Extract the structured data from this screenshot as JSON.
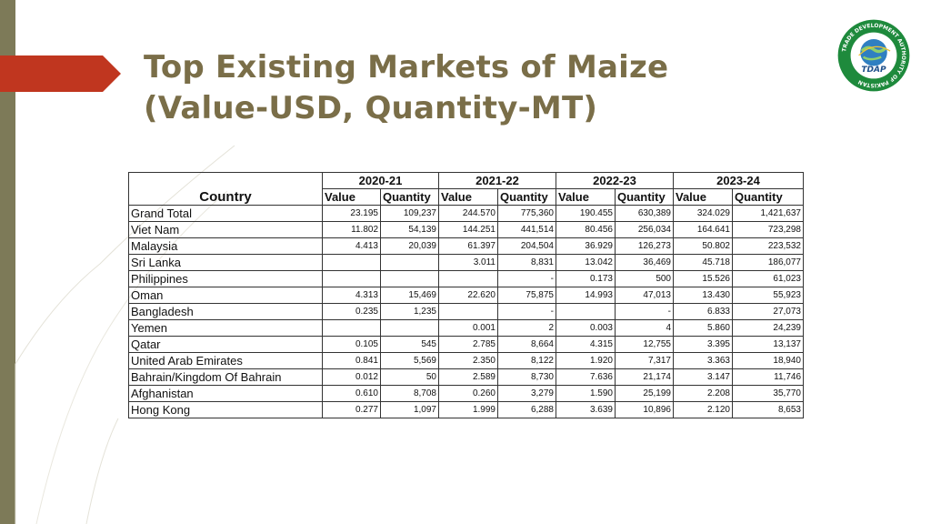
{
  "title": {
    "line1": "Top Existing Markets of Maize",
    "line2": "(Value-USD, Quantity-MT)"
  },
  "logo": {
    "ring_text": "TRADE DEVELOPMENT AUTHORITY OF PAKISTAN",
    "center_text": "TDAP"
  },
  "colors": {
    "title": "#7a6e48",
    "left_bar": "#7d7a58",
    "arrow": "#c0361f",
    "logo_green": "#1e8a3c"
  },
  "table": {
    "country_header": "Country",
    "years": [
      "2020-21",
      "2021-22",
      "2022-23",
      "2023-24"
    ],
    "sub_headers": [
      "Value",
      "Quantity"
    ],
    "rows": [
      {
        "country": "Grand Total",
        "cells": [
          "23.195",
          "109,237",
          "244.570",
          "775,360",
          "190.455",
          "630,389",
          "324.029",
          "1,421,637"
        ]
      },
      {
        "country": "Viet Nam",
        "cells": [
          "11.802",
          "54,139",
          "144.251",
          "441,514",
          "80.456",
          "256,034",
          "164.641",
          "723,298"
        ]
      },
      {
        "country": "Malaysia",
        "cells": [
          "4.413",
          "20,039",
          "61.397",
          "204,504",
          "36.929",
          "126,273",
          "50.802",
          "223,532"
        ]
      },
      {
        "country": "Sri Lanka",
        "cells": [
          "",
          "",
          "3.011",
          "8,831",
          "13.042",
          "36,469",
          "45.718",
          "186,077"
        ]
      },
      {
        "country": "Philippines",
        "cells": [
          "",
          "",
          "",
          "-",
          "0.173",
          "500",
          "15.526",
          "61,023"
        ]
      },
      {
        "country": "Oman",
        "cells": [
          "4.313",
          "15,469",
          "22.620",
          "75,875",
          "14.993",
          "47,013",
          "13.430",
          "55,923"
        ]
      },
      {
        "country": "Bangladesh",
        "cells": [
          "0.235",
          "1,235",
          "",
          "-",
          "",
          "-",
          "6.833",
          "27,073"
        ]
      },
      {
        "country": "Yemen",
        "cells": [
          "",
          "",
          "0.001",
          "2",
          "0.003",
          "4",
          "5.860",
          "24,239"
        ]
      },
      {
        "country": "Qatar",
        "cells": [
          "0.105",
          "545",
          "2.785",
          "8,664",
          "4.315",
          "12,755",
          "3.395",
          "13,137"
        ]
      },
      {
        "country": "United Arab Emirates",
        "cells": [
          "0.841",
          "5,569",
          "2.350",
          "8,122",
          "1.920",
          "7,317",
          "3.363",
          "18,940"
        ]
      },
      {
        "country": "Bahrain/Kingdom Of Bahrain",
        "cells": [
          "0.012",
          "50",
          "2.589",
          "8,730",
          "7.636",
          "21,174",
          "3.147",
          "11,746"
        ]
      },
      {
        "country": "Afghanistan",
        "cells": [
          "0.610",
          "8,708",
          "0.260",
          "3,279",
          "1.590",
          "25,199",
          "2.208",
          "35,770"
        ]
      },
      {
        "country": "Hong Kong",
        "cells": [
          "0.277",
          "1,097",
          "1.999",
          "6,288",
          "3.639",
          "10,896",
          "2.120",
          "8,653"
        ]
      }
    ]
  }
}
